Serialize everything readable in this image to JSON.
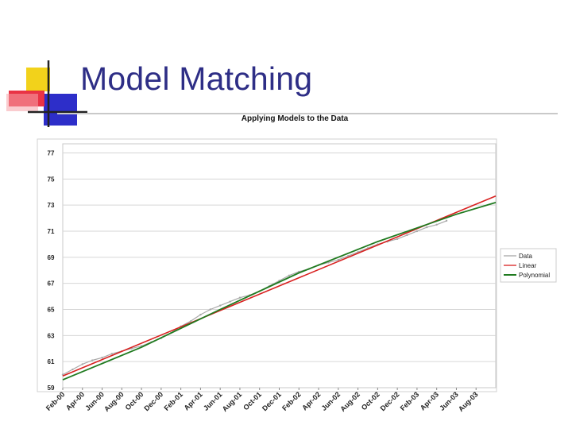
{
  "slide": {
    "title": "Model Matching"
  },
  "colors": {
    "title": "#2e2e86",
    "logo_yellow": "#f2d21b",
    "logo_blue": "#2d2ec9",
    "logo_red": "#e8283b",
    "data_series": "#a8a8a8",
    "linear_series": "#d8201f",
    "polynomial_series": "#1f7a1f"
  },
  "chart_data": {
    "type": "line",
    "title": "Applying Models to the Data",
    "xlabel": "",
    "ylabel": "",
    "ylim": [
      59,
      77.7
    ],
    "yticks": [
      59,
      61,
      63,
      65,
      67,
      69,
      71,
      73,
      75,
      77
    ],
    "xlim": [
      "Feb-00",
      "Oct-03"
    ],
    "xticks": [
      "Feb-00",
      "Apr-00",
      "Jun-00",
      "Aug-00",
      "Oct-00",
      "Dec-00",
      "Feb-01",
      "Apr-01",
      "Jun-01",
      "Aug-01",
      "Oct-01",
      "Dec-01",
      "Feb-02",
      "Apr-02",
      "Jun-02",
      "Aug-02",
      "Oct-02",
      "Dec-02",
      "Feb-03",
      "Apr-03",
      "Jun-03",
      "Aug-03"
    ],
    "grid": true,
    "legend_position": "right",
    "series": [
      {
        "name": "Data",
        "x": [
          "Feb-00",
          "Mar-00",
          "Apr-00",
          "May-00",
          "Jun-00",
          "Jul-00",
          "Aug-00",
          "Sep-00",
          "Oct-00",
          "Nov-00",
          "Dec-00",
          "Jan-01",
          "Feb-01",
          "Mar-01",
          "Apr-01",
          "May-01",
          "Jun-01",
          "Jul-01",
          "Aug-01",
          "Sep-01",
          "Oct-01",
          "Nov-01",
          "Dec-01",
          "Jan-02",
          "Feb-02",
          "Mar-02",
          "Apr-02",
          "May-02",
          "Jun-02",
          "Jul-02",
          "Aug-02",
          "Sep-02",
          "Oct-02",
          "Nov-02",
          "Dec-02",
          "Jan-03",
          "Feb-03",
          "Mar-03",
          "Apr-03",
          "May-03"
        ],
        "y": [
          60.0,
          60.4,
          60.8,
          61.1,
          61.3,
          61.6,
          61.8,
          62.0,
          62.2,
          62.5,
          62.8,
          63.2,
          63.7,
          64.1,
          64.6,
          65.0,
          65.3,
          65.6,
          65.9,
          66.1,
          66.4,
          66.8,
          67.2,
          67.6,
          67.9,
          68.1,
          68.4,
          68.6,
          68.8,
          69.1,
          69.4,
          69.7,
          70.0,
          70.2,
          70.4,
          70.7,
          71.0,
          71.3,
          71.5,
          71.8
        ]
      },
      {
        "name": "Linear",
        "x": [
          "Feb-00",
          "Oct-03"
        ],
        "y": [
          59.9,
          73.7
        ]
      },
      {
        "name": "Polynomial",
        "x": [
          "Feb-00",
          "Oct-00",
          "Jun-01",
          "Feb-02",
          "Oct-02",
          "Jun-03",
          "Oct-03"
        ],
        "y": [
          59.6,
          62.1,
          65.0,
          67.8,
          70.2,
          72.3,
          73.2
        ]
      }
    ]
  }
}
